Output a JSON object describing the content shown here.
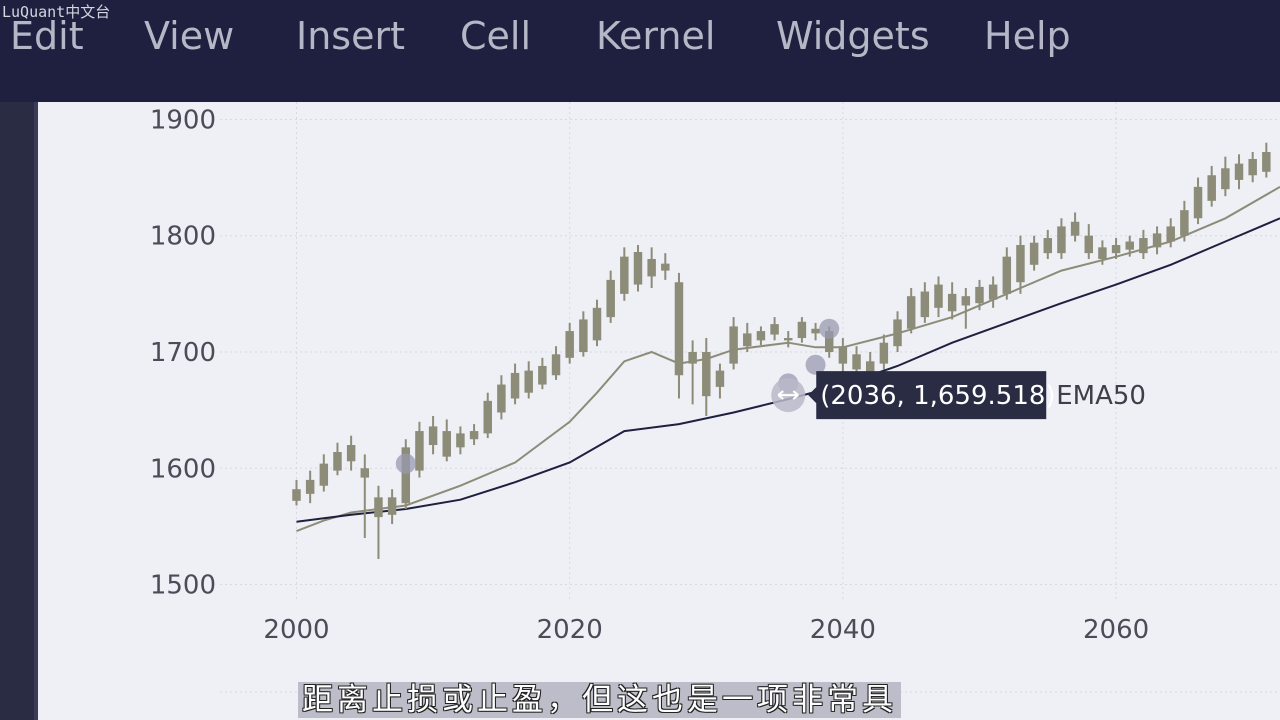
{
  "watermark": "LuQuant中文台",
  "menubar": {
    "items": [
      "Edit",
      "View",
      "Insert",
      "Cell",
      "Kernel",
      "Widgets",
      "Help"
    ]
  },
  "colors": {
    "menubar_bg": "#1f2040",
    "candle": "#8c8c78",
    "ema_fast": "#8c8c78",
    "ema50": "#1f2040",
    "marker": "#9a9ab0",
    "tooltip_bg": "#2a2c44"
  },
  "chart_data": {
    "type": "candlestick",
    "x_ticks": [
      2000,
      2020,
      2040,
      2060
    ],
    "y_ticks": [
      1500,
      1600,
      1700,
      1800,
      1900
    ],
    "xlim": [
      1994.4,
      2072
    ],
    "ylim": [
      1485,
      1915
    ],
    "ohlc": [
      [
        2000,
        1572,
        1590,
        1568,
        1582
      ],
      [
        2001,
        1578,
        1598,
        1570,
        1590
      ],
      [
        2002,
        1585,
        1612,
        1580,
        1604
      ],
      [
        2003,
        1598,
        1622,
        1594,
        1614
      ],
      [
        2004,
        1606,
        1628,
        1598,
        1620
      ],
      [
        2005,
        1600,
        1612,
        1540,
        1592
      ],
      [
        2006,
        1575,
        1585,
        1522,
        1558
      ],
      [
        2007,
        1560,
        1582,
        1552,
        1575
      ],
      [
        2008,
        1570,
        1625,
        1565,
        1618
      ],
      [
        2009,
        1598,
        1640,
        1592,
        1632
      ],
      [
        2010,
        1620,
        1645,
        1612,
        1636
      ],
      [
        2011,
        1610,
        1642,
        1606,
        1632
      ],
      [
        2012,
        1618,
        1636,
        1612,
        1630
      ],
      [
        2013,
        1625,
        1638,
        1620,
        1632
      ],
      [
        2014,
        1630,
        1665,
        1626,
        1658
      ],
      [
        2015,
        1648,
        1680,
        1642,
        1672
      ],
      [
        2016,
        1660,
        1690,
        1655,
        1682
      ],
      [
        2017,
        1665,
        1692,
        1660,
        1684
      ],
      [
        2018,
        1672,
        1695,
        1668,
        1688
      ],
      [
        2019,
        1680,
        1705,
        1676,
        1698
      ],
      [
        2020,
        1695,
        1725,
        1690,
        1718
      ],
      [
        2021,
        1700,
        1735,
        1696,
        1728
      ],
      [
        2022,
        1710,
        1745,
        1705,
        1738
      ],
      [
        2023,
        1730,
        1770,
        1725,
        1762
      ],
      [
        2024,
        1750,
        1790,
        1744,
        1782
      ],
      [
        2025,
        1758,
        1792,
        1752,
        1786
      ],
      [
        2026,
        1765,
        1790,
        1755,
        1780
      ],
      [
        2027,
        1770,
        1785,
        1762,
        1776
      ],
      [
        2028,
        1760,
        1768,
        1660,
        1680
      ],
      [
        2029,
        1690,
        1710,
        1655,
        1700
      ],
      [
        2030,
        1700,
        1712,
        1645,
        1662
      ],
      [
        2031,
        1670,
        1690,
        1660,
        1684
      ],
      [
        2032,
        1690,
        1730,
        1685,
        1722
      ],
      [
        2033,
        1705,
        1725,
        1700,
        1716
      ],
      [
        2034,
        1710,
        1722,
        1706,
        1718
      ],
      [
        2035,
        1715,
        1730,
        1710,
        1724
      ],
      [
        2036,
        1710,
        1718,
        1704,
        1712
      ],
      [
        2037,
        1712,
        1730,
        1708,
        1726
      ],
      [
        2038,
        1716,
        1725,
        1710,
        1720
      ],
      [
        2039,
        1700,
        1722,
        1695,
        1718
      ],
      [
        2040,
        1690,
        1712,
        1670,
        1705
      ],
      [
        2041,
        1685,
        1705,
        1672,
        1698
      ],
      [
        2042,
        1680,
        1700,
        1668,
        1692
      ],
      [
        2043,
        1690,
        1715,
        1685,
        1708
      ],
      [
        2044,
        1705,
        1735,
        1700,
        1728
      ],
      [
        2045,
        1720,
        1755,
        1716,
        1748
      ],
      [
        2046,
        1730,
        1760,
        1725,
        1752
      ],
      [
        2047,
        1738,
        1765,
        1730,
        1758
      ],
      [
        2048,
        1735,
        1760,
        1728,
        1750
      ],
      [
        2049,
        1740,
        1755,
        1720,
        1748
      ],
      [
        2050,
        1742,
        1762,
        1736,
        1756
      ],
      [
        2051,
        1745,
        1765,
        1738,
        1758
      ],
      [
        2052,
        1750,
        1790,
        1745,
        1782
      ],
      [
        2053,
        1760,
        1800,
        1750,
        1792
      ],
      [
        2054,
        1775,
        1800,
        1770,
        1794
      ],
      [
        2055,
        1785,
        1805,
        1780,
        1798
      ],
      [
        2056,
        1785,
        1815,
        1780,
        1808
      ],
      [
        2057,
        1800,
        1820,
        1795,
        1812
      ],
      [
        2058,
        1785,
        1810,
        1780,
        1800
      ],
      [
        2059,
        1780,
        1796,
        1775,
        1790
      ],
      [
        2060,
        1785,
        1798,
        1780,
        1792
      ],
      [
        2061,
        1788,
        1800,
        1782,
        1795
      ],
      [
        2062,
        1785,
        1805,
        1780,
        1798
      ],
      [
        2063,
        1790,
        1808,
        1784,
        1802
      ],
      [
        2064,
        1795,
        1815,
        1790,
        1808
      ],
      [
        2065,
        1800,
        1830,
        1795,
        1822
      ],
      [
        2066,
        1815,
        1850,
        1810,
        1842
      ],
      [
        2067,
        1830,
        1860,
        1825,
        1852
      ],
      [
        2068,
        1840,
        1868,
        1834,
        1858
      ],
      [
        2069,
        1848,
        1870,
        1840,
        1862
      ],
      [
        2070,
        1852,
        1872,
        1846,
        1866
      ],
      [
        2071,
        1855,
        1880,
        1850,
        1872
      ]
    ],
    "ema_fast": [
      [
        2000,
        1546
      ],
      [
        2002,
        1555
      ],
      [
        2004,
        1562
      ],
      [
        2008,
        1568
      ],
      [
        2012,
        1585
      ],
      [
        2016,
        1605
      ],
      [
        2020,
        1640
      ],
      [
        2022,
        1665
      ],
      [
        2024,
        1692
      ],
      [
        2026,
        1700
      ],
      [
        2028,
        1690
      ],
      [
        2030,
        1694
      ],
      [
        2032,
        1702
      ],
      [
        2036,
        1708
      ],
      [
        2038,
        1704
      ],
      [
        2040,
        1704
      ],
      [
        2044,
        1716
      ],
      [
        2048,
        1730
      ],
      [
        2052,
        1750
      ],
      [
        2056,
        1770
      ],
      [
        2060,
        1782
      ],
      [
        2064,
        1795
      ],
      [
        2068,
        1815
      ],
      [
        2072,
        1842
      ]
    ],
    "ema50": [
      [
        2000,
        1554
      ],
      [
        2004,
        1560
      ],
      [
        2008,
        1565
      ],
      [
        2012,
        1573
      ],
      [
        2016,
        1588
      ],
      [
        2020,
        1605
      ],
      [
        2024,
        1632
      ],
      [
        2028,
        1638
      ],
      [
        2032,
        1648
      ],
      [
        2036,
        1659.518
      ],
      [
        2040,
        1672
      ],
      [
        2044,
        1688
      ],
      [
        2048,
        1708
      ],
      [
        2052,
        1725
      ],
      [
        2056,
        1742
      ],
      [
        2060,
        1758
      ],
      [
        2064,
        1775
      ],
      [
        2068,
        1795
      ],
      [
        2072,
        1815
      ]
    ],
    "markers": [
      [
        2008,
        1604
      ],
      [
        2036,
        1673
      ],
      [
        2038,
        1689
      ],
      [
        2039,
        1720
      ]
    ],
    "hover": {
      "x": 2036,
      "y": 1659.518,
      "label": "(2036, 1,659.518)",
      "series": "EMA50"
    }
  },
  "subtitle": "距离止损或止盈，但这也是一项非常具"
}
